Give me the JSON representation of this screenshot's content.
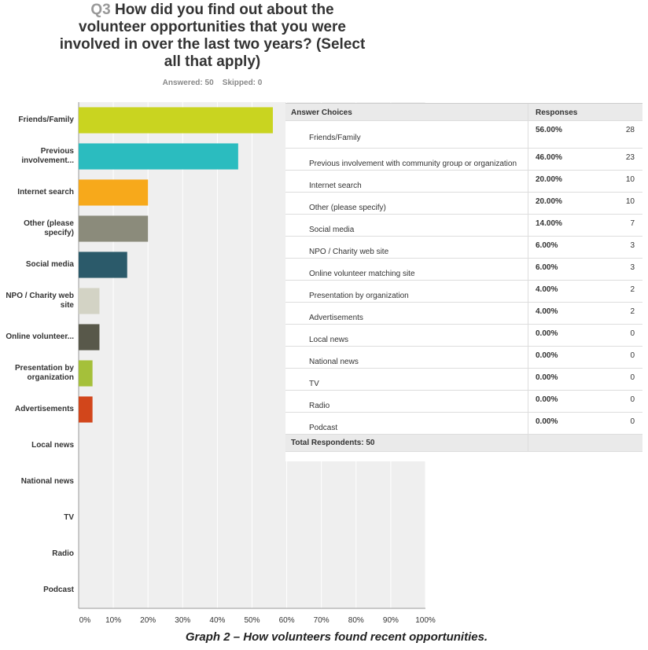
{
  "chart_data": {
    "type": "bar",
    "orientation": "horizontal",
    "question_number": "Q3",
    "title": "How did you find out about the volunteer opportunities that you were involved in over the last two years? (Select all that apply)",
    "answered": "Answered: 50",
    "skipped": "Skipped: 0",
    "categories": [
      "Friends/Family",
      "Previous involvement...",
      "Internet search",
      "Other (please specify)",
      "Social media",
      "NPO / Charity web site",
      "Online volunteer...",
      "Presentation by organization",
      "Advertisements",
      "Local news",
      "National news",
      "TV",
      "Radio",
      "Podcast"
    ],
    "values": [
      56,
      46,
      20,
      20,
      14,
      6,
      6,
      4,
      4,
      0,
      0,
      0,
      0,
      0
    ],
    "colors": [
      "#c9d420",
      "#2bbcbf",
      "#f7a91b",
      "#8b8b7b",
      "#2b5a6a",
      "#d3d3c5",
      "#58584a",
      "#a5c03a",
      "#d2461b",
      "#c9d420",
      "#2bbcbf",
      "#f7a91b",
      "#8b8b7b",
      "#2b5a6a"
    ],
    "xlim": [
      0,
      100
    ],
    "xticks": [
      {
        "value": 0,
        "label": "0%"
      },
      {
        "value": 10,
        "label": "10%"
      },
      {
        "value": 20,
        "label": "20%"
      },
      {
        "value": 30,
        "label": "30%"
      },
      {
        "value": 40,
        "label": "40%"
      },
      {
        "value": 50,
        "label": "50%"
      },
      {
        "value": 60,
        "label": "60%"
      },
      {
        "value": 70,
        "label": "70%"
      },
      {
        "value": 80,
        "label": "80%"
      },
      {
        "value": 90,
        "label": "90%"
      },
      {
        "value": 100,
        "label": "100%"
      }
    ],
    "grid": true,
    "caption": "Graph 2 – How volunteers found recent opportunities."
  },
  "table": {
    "header": [
      "Answer Choices",
      "Responses"
    ],
    "rows": [
      [
        "Friends/Family",
        "56.00%",
        28
      ],
      [
        "Previous involvement with community group or organization",
        "46.00%",
        23
      ],
      [
        "Internet search",
        "20.00%",
        10
      ],
      [
        "Other (please specify)",
        "20.00%",
        10
      ],
      [
        "Social media",
        "14.00%",
        7
      ],
      [
        "NPO / Charity web site",
        "6.00%",
        3
      ],
      [
        "Online volunteer matching site",
        "6.00%",
        3
      ],
      [
        "Presentation by organization",
        "4.00%",
        2
      ],
      [
        "Advertisements",
        "4.00%",
        2
      ],
      [
        "Local news",
        "0.00%",
        0
      ],
      [
        "National news",
        "0.00%",
        0
      ],
      [
        "TV",
        "0.00%",
        0
      ],
      [
        "Radio",
        "0.00%",
        0
      ],
      [
        "Podcast",
        "0.00%",
        0
      ]
    ],
    "footer": "Total Respondents: 50"
  }
}
